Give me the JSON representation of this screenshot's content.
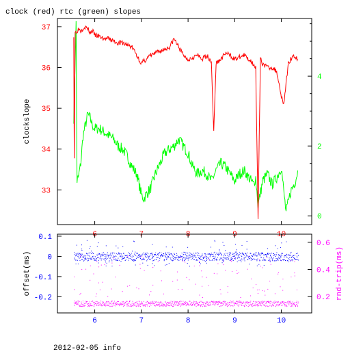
{
  "title": "clock (red) rtc (green) slopes",
  "footer": "2012-02-05 info",
  "colors": {
    "clock": "#ff0000",
    "rtc": "#00ff00",
    "offset": "#0000ff",
    "rndtrip": "#ff00ff",
    "axis": "#000000",
    "bottom_x_ticks": "#0000ff"
  },
  "chart_data": [
    {
      "type": "line",
      "title": "clock (red) rtc (green) slopes",
      "xlabel": "",
      "ylabel": "clockslope",
      "y2label": "",
      "xlim": [
        5.2,
        10.65
      ],
      "ylim": [
        32.15,
        37.2
      ],
      "y2lim": [
        -0.25,
        5.65
      ],
      "x_ticks": [
        6,
        7,
        8,
        9,
        10
      ],
      "y_ticks": [
        33,
        34,
        35,
        36,
        37
      ],
      "y2_ticks": [
        0,
        2,
        4
      ],
      "grid": false,
      "series": [
        {
          "name": "clock",
          "axis": "y",
          "x": [
            5.55,
            5.56,
            5.58,
            5.62,
            5.66,
            5.7,
            5.78,
            5.85,
            5.9,
            5.95,
            6.0,
            6.1,
            6.2,
            6.3,
            6.4,
            6.5,
            6.6,
            6.7,
            6.8,
            6.85,
            6.9,
            6.95,
            7.0,
            7.1,
            7.2,
            7.3,
            7.4,
            7.5,
            7.6,
            7.7,
            7.8,
            7.9,
            8.0,
            8.1,
            8.2,
            8.3,
            8.4,
            8.5,
            8.55,
            8.6,
            8.7,
            8.8,
            8.9,
            9.0,
            9.1,
            9.2,
            9.3,
            9.4,
            9.45,
            9.5,
            9.55,
            9.6,
            9.7,
            9.8,
            9.9,
            10.0,
            10.05,
            10.1,
            10.15,
            10.2,
            10.25,
            10.3,
            10.35
          ],
          "values": [
            36.8,
            33.8,
            36.85,
            36.9,
            36.95,
            36.9,
            37.0,
            36.95,
            36.85,
            36.9,
            36.8,
            36.75,
            36.7,
            36.7,
            36.65,
            36.6,
            36.6,
            36.55,
            36.5,
            36.4,
            36.3,
            36.2,
            36.1,
            36.2,
            36.3,
            36.35,
            36.4,
            36.45,
            36.5,
            36.7,
            36.5,
            36.3,
            36.2,
            36.25,
            36.3,
            36.2,
            36.3,
            36.15,
            34.4,
            36.1,
            36.2,
            36.35,
            36.3,
            36.2,
            36.25,
            36.3,
            36.2,
            36.1,
            36.0,
            32.3,
            36.2,
            36.1,
            36.0,
            36.0,
            35.9,
            35.3,
            35.1,
            35.6,
            36.1,
            36.2,
            36.3,
            36.25,
            36.2
          ]
        },
        {
          "name": "rtc",
          "axis": "y2",
          "x": [
            5.55,
            5.6,
            5.62,
            5.65,
            5.7,
            5.75,
            5.8,
            5.85,
            5.9,
            5.95,
            6.0,
            6.1,
            6.2,
            6.3,
            6.4,
            6.5,
            6.6,
            6.7,
            6.8,
            6.85,
            6.9,
            7.0,
            7.05,
            7.1,
            7.2,
            7.3,
            7.4,
            7.5,
            7.6,
            7.7,
            7.8,
            7.9,
            8.0,
            8.1,
            8.2,
            8.3,
            8.4,
            8.5,
            8.6,
            8.7,
            8.8,
            8.9,
            9.0,
            9.1,
            9.2,
            9.3,
            9.4,
            9.45,
            9.5,
            9.6,
            9.7,
            9.8,
            9.9,
            10.0,
            10.05,
            10.1,
            10.15,
            10.2,
            10.3,
            10.35
          ],
          "values": [
            2.8,
            5.5,
            1.0,
            1.1,
            1.5,
            2.3,
            2.6,
            2.9,
            2.8,
            2.6,
            2.5,
            2.5,
            2.4,
            2.3,
            2.2,
            2.0,
            1.9,
            1.7,
            1.4,
            1.3,
            1.2,
            0.6,
            0.5,
            0.6,
            0.8,
            1.2,
            1.5,
            1.8,
            1.9,
            2.0,
            2.2,
            2.0,
            1.8,
            1.4,
            1.2,
            1.3,
            1.2,
            1.0,
            1.3,
            1.5,
            1.4,
            1.2,
            1.0,
            1.2,
            1.3,
            1.1,
            0.9,
            1.1,
            0.3,
            1.0,
            1.2,
            0.9,
            1.1,
            1.4,
            0.7,
            0.1,
            0.4,
            0.7,
            1.0,
            1.3
          ]
        }
      ]
    },
    {
      "type": "scatter",
      "xlabel": "",
      "ylabel": "offset(ms)",
      "y2label": "rnd-trip(ms)",
      "xlim": [
        5.2,
        10.65
      ],
      "ylim": [
        -0.28,
        0.11
      ],
      "y2lim": [
        0.08,
        0.66
      ],
      "x_ticks": [
        6,
        7,
        8,
        9,
        10
      ],
      "y_ticks": [
        0.1,
        0,
        -0.1,
        -0.2
      ],
      "y2_ticks": [
        0.2,
        0.4,
        0.6
      ],
      "grid": false,
      "series": [
        {
          "name": "offset",
          "axis": "y",
          "x": [
            5.55,
            5.8,
            6.0,
            6.5,
            7.0,
            7.5,
            8.0,
            8.5,
            9.0,
            9.5,
            10.0,
            10.35
          ],
          "values": [
            0.0,
            0.0,
            0.0,
            0.0,
            0.0,
            0.0,
            0.0,
            0.0,
            0.0,
            0.0,
            0.0,
            0.0
          ]
        },
        {
          "name": "rnd-trip",
          "axis": "y2",
          "x": [
            5.55,
            5.8,
            6.0,
            6.5,
            7.0,
            7.5,
            8.0,
            8.5,
            9.0,
            9.5,
            10.0,
            10.35
          ],
          "values": [
            0.15,
            0.15,
            0.15,
            0.15,
            0.15,
            0.15,
            0.15,
            0.15,
            0.15,
            0.15,
            0.15,
            0.15
          ]
        }
      ]
    }
  ]
}
